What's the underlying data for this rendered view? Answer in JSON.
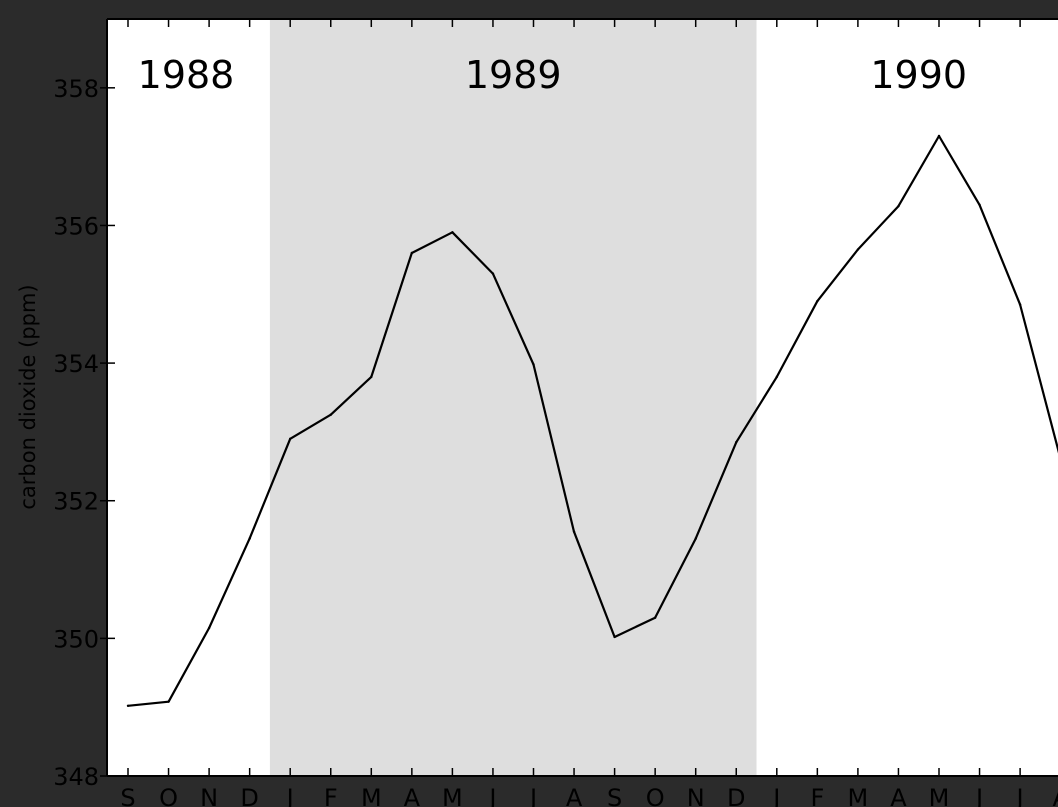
{
  "chart_data": {
    "type": "line",
    "title": "",
    "xlabel": "",
    "ylabel": "carbon dioxide (ppm)",
    "ylim": [
      348,
      359
    ],
    "yticks": [
      348,
      350,
      352,
      354,
      356,
      358
    ],
    "x": [
      "S",
      "O",
      "N",
      "D",
      "J",
      "F",
      "M",
      "A",
      "M",
      "J",
      "J",
      "A",
      "S",
      "O",
      "N",
      "D",
      "J",
      "F",
      "M",
      "A",
      "M",
      "J",
      "J",
      "A"
    ],
    "values": [
      349.02,
      349.08,
      350.15,
      351.45,
      352.9,
      353.25,
      353.8,
      355.6,
      355.9,
      355.3,
      353.98,
      351.55,
      350.02,
      350.3,
      351.45,
      352.85,
      353.8,
      354.9,
      355.65,
      356.28,
      357.3,
      356.3,
      354.85,
      352.6
    ],
    "year_labels": [
      {
        "label": "1988",
        "start": 0,
        "end": 4
      },
      {
        "label": "1989",
        "start": 4,
        "end": 16,
        "shaded": true
      },
      {
        "label": "1990",
        "start": 16,
        "end": 24
      }
    ],
    "grid": false,
    "shade_color": "#dedede",
    "line_color": "#000000"
  }
}
